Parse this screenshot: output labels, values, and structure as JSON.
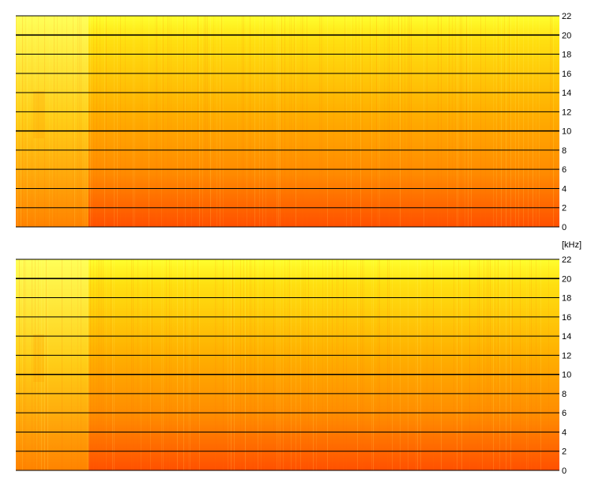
{
  "chart_data": {
    "type": "heatmap",
    "description_free": true,
    "unit_label": "[kHz]",
    "y_ticks": [
      0,
      2,
      4,
      6,
      8,
      10,
      12,
      14,
      16,
      18,
      20,
      22
    ],
    "ylim": [
      0,
      22
    ],
    "grid": true,
    "channels": [
      {
        "y_tick_labels": [
          "22",
          "20",
          "18",
          "16",
          "14",
          "12",
          "10",
          "8",
          "6",
          "4",
          "2",
          "0"
        ]
      },
      {
        "y_tick_labels": [
          "22",
          "20",
          "18",
          "16",
          "14",
          "12",
          "10",
          "8",
          "6",
          "4",
          "2",
          "0"
        ]
      }
    ],
    "colors": {
      "low_intensity": "#ffff33",
      "mid_intensity": "#ffb300",
      "high_intensity": "#ff5a00",
      "grid_line": "#000000"
    }
  }
}
